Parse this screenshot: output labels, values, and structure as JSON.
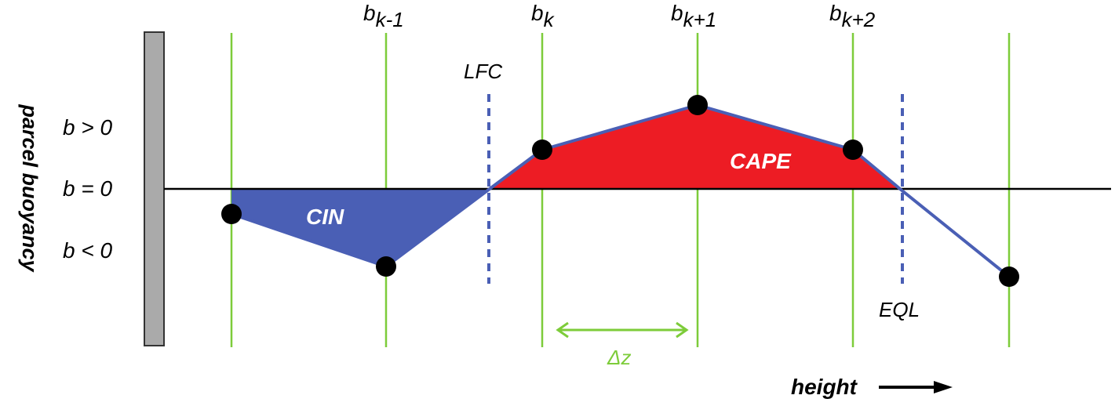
{
  "labels": {
    "axis_y": "parcel buoyancy",
    "b_pos": "b > 0",
    "b_zero": "b = 0",
    "b_neg": "b < 0",
    "b": "b",
    "sub_km1": "k-1",
    "sub_k": "k",
    "sub_kp1": "k+1",
    "sub_kp2": "k+2",
    "lfc": "LFC",
    "eql": "EQL",
    "cin": "CIN",
    "cape": "CAPE",
    "dz": "Δz",
    "height": "height"
  },
  "colors": {
    "grid_line": "#7dcc3a",
    "profile_line": "#4a5fb5",
    "cin_fill": "#4a5fb5",
    "cape_fill": "#ed1c24",
    "wall": "#aaaaaa",
    "point": "#000000",
    "dashed": "#4a5fb5"
  }
}
